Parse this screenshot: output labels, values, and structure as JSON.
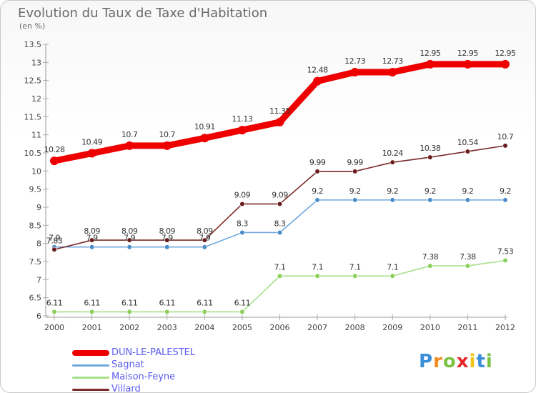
{
  "header": {
    "title": "Evolution du Taux de Taxe d'Habitation",
    "unit": "(en %)"
  },
  "chart_data": {
    "type": "line",
    "title": "Evolution du Taux de Taxe d'Habitation",
    "subtitle": "(en %)",
    "x": [
      "2000",
      "2001",
      "2002",
      "2003",
      "2004",
      "2005",
      "2006",
      "2007",
      "2008",
      "2009",
      "2010",
      "2011",
      "2012"
    ],
    "ylim": [
      6,
      13.5
    ],
    "yticks": [
      6,
      6.5,
      7,
      7.5,
      8,
      8.5,
      9,
      9.5,
      10,
      10.5,
      11,
      11.5,
      12,
      12.5,
      13,
      13.5
    ],
    "ytick_labels": [
      "6",
      "6.5",
      "7",
      "7.5",
      "8",
      "8.5",
      "9",
      "9.5",
      "10",
      "10.5",
      "11",
      "11.5",
      "12",
      "12.5",
      "13",
      "13.5"
    ],
    "grid": false,
    "legend_position": "bottom-left",
    "series": [
      {
        "name": "DUN-LE-PALESTEL",
        "color": "#ee0000",
        "marker_color": "#ee0000",
        "values": [
          10.28,
          10.49,
          10.7,
          10.7,
          10.91,
          11.13,
          11.35,
          12.48,
          12.73,
          12.73,
          12.95,
          12.95,
          12.95
        ],
        "labels": [
          "10.28",
          "10.49",
          "10.7",
          "10.7",
          "10.91",
          "11.13",
          "11.35",
          "12.48",
          "12.73",
          "12.73",
          "12.95",
          "12.95",
          "12.95"
        ]
      },
      {
        "name": "Sagnat",
        "color": "#6fa8dc",
        "marker_color": "#4a8cc9",
        "values": [
          7.9,
          7.9,
          7.9,
          7.9,
          7.9,
          8.3,
          8.3,
          9.2,
          9.2,
          9.2,
          9.2,
          9.2,
          9.2
        ],
        "labels": [
          "7.9",
          "7.9",
          "7.9",
          "7.9",
          "7.9",
          "8.3",
          "8.3",
          "9.2",
          "9.2",
          "9.2",
          "9.2",
          "9.2",
          "9.2"
        ]
      },
      {
        "name": "Maison-Feyne",
        "color": "#a6e08a",
        "marker_color": "#8cd05a",
        "values": [
          6.11,
          6.11,
          6.11,
          6.11,
          6.11,
          6.11,
          7.1,
          7.1,
          7.1,
          7.1,
          7.38,
          7.38,
          7.53
        ],
        "labels": [
          "6.11",
          "6.11",
          "6.11",
          "6.11",
          "6.11",
          "6.11",
          "7.1",
          "7.1",
          "7.1",
          "7.1",
          "7.38",
          "7.38",
          "7.53"
        ]
      },
      {
        "name": "Villard",
        "color": "#7a2a2a",
        "marker_color": "#6a1c1c",
        "values": [
          7.83,
          8.09,
          8.09,
          8.09,
          8.09,
          9.09,
          9.09,
          9.99,
          9.99,
          10.24,
          10.38,
          10.54,
          10.7
        ],
        "labels": [
          "7.83",
          "8.09",
          "8.09",
          "8.09",
          "8.09",
          "9.09",
          "9.09",
          "9.99",
          "9.99",
          "10.24",
          "10.38",
          "10.54",
          "10.7"
        ]
      }
    ]
  },
  "legend": {
    "items": [
      {
        "label": "DUN-LE-PALESTEL",
        "color": "#ee0000"
      },
      {
        "label": "Sagnat",
        "color": "#6fa8dc"
      },
      {
        "label": "Maison-Feyne",
        "color": "#a6e08a"
      },
      {
        "label": "Villard",
        "color": "#7a2a2a"
      }
    ]
  },
  "brand": {
    "letters": [
      "P",
      "r",
      "o",
      "x",
      "i",
      "t",
      "i"
    ],
    "colors": [
      "#3a8fd8",
      "#f08a1c",
      "#7cc242",
      "#e8272a",
      "#f0c419",
      "#3a8fd8",
      "#7cc242"
    ]
  }
}
